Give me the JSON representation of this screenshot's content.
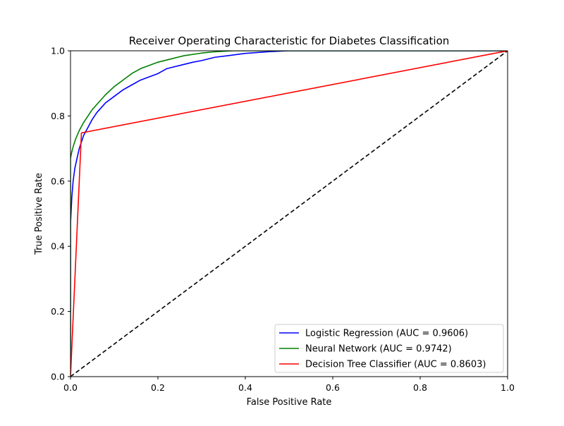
{
  "chart_data": {
    "type": "line",
    "title": "Receiver Operating Characteristic for Diabetes Classification",
    "xlabel": "False Positive Rate",
    "ylabel": "True Positive Rate",
    "xlim": [
      0.0,
      1.0
    ],
    "ylim": [
      0.0,
      1.0
    ],
    "x_ticks": [
      "0.0",
      "0.2",
      "0.4",
      "0.6",
      "0.8",
      "1.0"
    ],
    "y_ticks": [
      "0.0",
      "0.2",
      "0.4",
      "0.6",
      "0.8",
      "1.0"
    ],
    "grid": false,
    "legend_position": "lower-right",
    "series": [
      {
        "name": "Logistic Regression (AUC = 0.9606)",
        "color": "#0000ff",
        "style": "solid",
        "x": [
          0.0,
          0.0,
          0.003,
          0.006,
          0.01,
          0.015,
          0.02,
          0.03,
          0.04,
          0.05,
          0.06,
          0.08,
          0.1,
          0.12,
          0.14,
          0.16,
          0.18,
          0.2,
          0.22,
          0.25,
          0.28,
          0.3,
          0.33,
          0.36,
          0.4,
          0.45,
          0.5,
          0.55,
          1.0
        ],
        "y": [
          0.0,
          0.47,
          0.55,
          0.6,
          0.64,
          0.67,
          0.7,
          0.74,
          0.765,
          0.79,
          0.81,
          0.84,
          0.86,
          0.88,
          0.895,
          0.91,
          0.92,
          0.93,
          0.945,
          0.955,
          0.965,
          0.97,
          0.98,
          0.985,
          0.992,
          0.997,
          1.0,
          1.0,
          1.0
        ]
      },
      {
        "name": "Neural Network (AUC = 0.9742)",
        "color": "#008000",
        "style": "solid",
        "x": [
          0.0,
          0.0,
          0.003,
          0.007,
          0.012,
          0.02,
          0.03,
          0.04,
          0.05,
          0.06,
          0.08,
          0.1,
          0.12,
          0.14,
          0.16,
          0.18,
          0.2,
          0.23,
          0.26,
          0.3,
          0.33,
          0.37,
          0.4,
          1.0
        ],
        "y": [
          0.0,
          0.67,
          0.69,
          0.71,
          0.73,
          0.755,
          0.78,
          0.8,
          0.82,
          0.835,
          0.865,
          0.89,
          0.91,
          0.93,
          0.945,
          0.955,
          0.965,
          0.975,
          0.985,
          0.993,
          0.997,
          1.0,
          1.0,
          1.0
        ]
      },
      {
        "name": "Decision Tree Classifier (AUC = 0.8603)",
        "color": "#ff0000",
        "style": "solid",
        "x": [
          0.0,
          0.025,
          1.0
        ],
        "y": [
          0.0,
          0.748,
          1.0
        ]
      },
      {
        "name": "",
        "color": "#000000",
        "style": "dashed",
        "x": [
          0.0,
          1.0
        ],
        "y": [
          0.0,
          1.0
        ]
      }
    ]
  }
}
